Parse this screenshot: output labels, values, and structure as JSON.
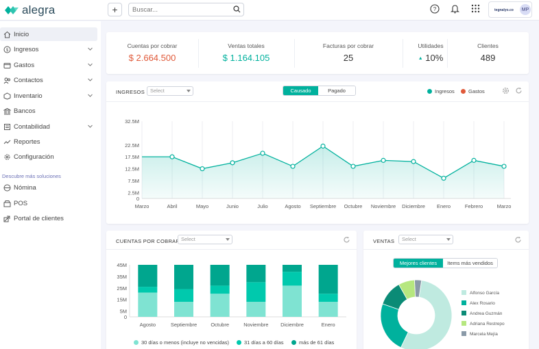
{
  "app": {
    "logo_text": "alegra"
  },
  "topbar": {
    "search_placeholder": "Buscar...",
    "avatar_initials": "MP",
    "company_name": "tegnalyo.co"
  },
  "sidebar": {
    "items": [
      {
        "label": "Inicio",
        "icon": "home-icon",
        "has_chevron": false,
        "active": true
      },
      {
        "label": "Ingresos",
        "icon": "coin-icon",
        "has_chevron": true
      },
      {
        "label": "Gastos",
        "icon": "wallet-icon",
        "has_chevron": true
      },
      {
        "label": "Contactos",
        "icon": "contacts-icon",
        "has_chevron": true
      },
      {
        "label": "Inventario",
        "icon": "inventory-icon",
        "has_chevron": true
      },
      {
        "label": "Bancos",
        "icon": "bank-icon",
        "has_chevron": false
      },
      {
        "label": "Contabilidad",
        "icon": "ledger-icon",
        "has_chevron": true
      },
      {
        "label": "Reportes",
        "icon": "reports-icon",
        "has_chevron": false
      },
      {
        "label": "Configuración",
        "icon": "gear-icon",
        "has_chevron": false
      }
    ],
    "section_title": "Descubre más soluciones",
    "solutions": [
      {
        "label": "Nómina",
        "icon": "payroll-icon"
      },
      {
        "label": "POS",
        "icon": "pos-icon"
      },
      {
        "label": "Portal de clientes",
        "icon": "portal-icon"
      }
    ]
  },
  "kpis": [
    {
      "label": "Cuentas por cobrar",
      "value": "$ 2.664.500",
      "color": "#e05a3a"
    },
    {
      "label": "Ventas totales",
      "value": "$ 1.164.105",
      "color": "#00b19d"
    },
    {
      "label": "Facturas por cobrar",
      "value": "25",
      "color": "#333333"
    },
    {
      "label": "Utilidades",
      "value": "10%",
      "color": "#333333",
      "trend": "▲"
    },
    {
      "label": "Clientes",
      "value": "489",
      "color": "#333333"
    }
  ],
  "ingresos_card": {
    "title": "INGRESOS",
    "select_placeholder": "Select",
    "tabs": [
      "Causado",
      "Pagado"
    ],
    "active_tab": "Causado",
    "legend": [
      {
        "label": "Ingresos",
        "color": "#00b19d"
      },
      {
        "label": "Gastos",
        "color": "#e05a3a"
      }
    ]
  },
  "cxc_card": {
    "title": "CUENTAS POR COBRAR",
    "select_placeholder": "Select",
    "legend": [
      {
        "label": "30 días o menos (incluye no vencidas)",
        "color": "#7fe3d2"
      },
      {
        "label": "31 días a 60 días",
        "color": "#00c9ad"
      },
      {
        "label": "más de 61 días",
        "color": "#00a68e"
      }
    ]
  },
  "ventas_card": {
    "title": "VENTAS",
    "select_placeholder": "Select",
    "tabs": [
      "Mejores clientes",
      "Items más vendidos"
    ],
    "active_tab": "Mejores clientes"
  },
  "chart_data": [
    {
      "type": "area",
      "title": "INGRESOS",
      "x": [
        "Marzo",
        "Abril",
        "Mayo",
        "Junio",
        "Julio",
        "Agosto",
        "Septiembre",
        "Octubre",
        "Noviembre",
        "Diciembre",
        "Enero",
        "Febrero",
        "Marzo"
      ],
      "ylabels": [
        "0",
        "2.5M",
        "7.5M",
        "12.5M",
        "17.5M",
        "22.5M",
        "32.5M"
      ],
      "yticks_values": [
        0,
        2.5,
        7.5,
        12.5,
        17.5,
        22.5,
        32.5
      ],
      "ylim": [
        0,
        32.5
      ],
      "series": [
        {
          "name": "Ingresos",
          "color": "#00b19d",
          "values": [
            17.5,
            17.5,
            12.5,
            15,
            19,
            13.5,
            22,
            13.5,
            16,
            15.5,
            8.5,
            16,
            13.5
          ]
        }
      ],
      "grid": "vertical"
    },
    {
      "type": "bar",
      "title": "CUENTAS POR COBRAR",
      "categories": [
        "Agosto",
        "Septiembre",
        "Octubre",
        "Noviembre",
        "Diciembre",
        "Enero"
      ],
      "ylabels": [
        "0",
        "5M",
        "15M",
        "25M",
        "35M",
        "45M"
      ],
      "ylim": [
        0,
        45
      ],
      "stacked": true,
      "series": [
        {
          "name": "30 días o menos (incluye no vencidas)",
          "color": "#7fe3d2",
          "values": [
            21,
            13,
            20,
            13,
            27,
            13
          ]
        },
        {
          "name": "31 días a 60 días",
          "color": "#00c9ad",
          "values": [
            5,
            11,
            7,
            17,
            12,
            7
          ]
        },
        {
          "name": "más de 61 días",
          "color": "#00a68e",
          "values": [
            19,
            21,
            18,
            15,
            6,
            25
          ]
        }
      ]
    },
    {
      "type": "pie",
      "title": "VENTAS",
      "labels": [
        "Alfonso García",
        "Alex Rosario",
        "Andrea Guzmán",
        "Adriana Restrepo",
        "Marcela Mejía"
      ],
      "colors": [
        "#bfeae0",
        "#00b19d",
        "#0b8b76",
        "#b6e77f",
        "#8a9aa8"
      ],
      "values": [
        52,
        22,
        11,
        7,
        3
      ]
    }
  ]
}
